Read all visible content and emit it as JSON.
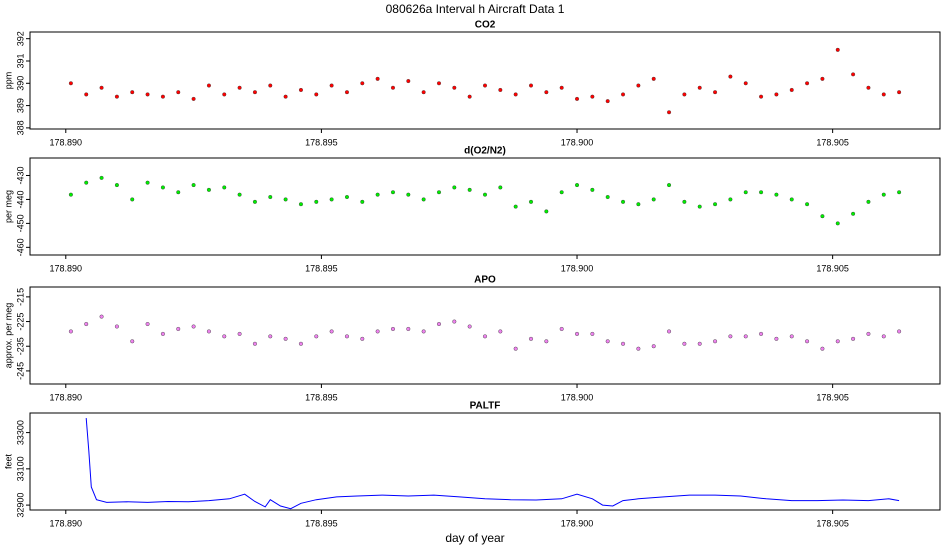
{
  "title": "080626a   Interval h Aircraft Data 1",
  "xlabel": "day of year",
  "chart_data": [
    {
      "type": "scatter",
      "title": "CO2",
      "ylabel": "ppm",
      "color": "#ff0000",
      "x": [
        178.8901,
        178.8904,
        178.8907,
        178.891,
        178.8913,
        178.8916,
        178.8919,
        178.8922,
        178.8925,
        178.8928,
        178.8931,
        178.8934,
        178.8937,
        178.894,
        178.8943,
        178.8946,
        178.8949,
        178.8952,
        178.8955,
        178.8958,
        178.8961,
        178.8964,
        178.8967,
        178.897,
        178.8973,
        178.8976,
        178.8979,
        178.8982,
        178.8985,
        178.8988,
        178.8991,
        178.8994,
        178.8997,
        178.9,
        178.9003,
        178.9006,
        178.9009,
        178.9012,
        178.9015,
        178.9018,
        178.9021,
        178.9024,
        178.9027,
        178.903,
        178.9033,
        178.9036,
        178.9039,
        178.9042,
        178.9045,
        178.9048,
        178.9051,
        178.9054,
        178.9057,
        178.906,
        178.9063
      ],
      "values": [
        390.0,
        389.5,
        389.8,
        389.4,
        389.6,
        389.5,
        389.4,
        389.6,
        389.3,
        389.9,
        389.5,
        389.8,
        389.6,
        389.9,
        389.4,
        389.7,
        389.5,
        389.9,
        389.6,
        390.0,
        390.2,
        389.8,
        390.1,
        389.6,
        390.0,
        389.8,
        389.4,
        389.9,
        389.7,
        389.5,
        389.9,
        389.6,
        389.8,
        389.3,
        389.4,
        389.2,
        389.5,
        389.9,
        390.2,
        388.7,
        389.5,
        389.8,
        389.6,
        390.3,
        390.0,
        389.4,
        389.5,
        389.7,
        390.0,
        390.2,
        391.5,
        390.4,
        389.8,
        389.5,
        389.6
      ],
      "xlim": [
        178.8893,
        178.9071
      ],
      "ylim": [
        387.95,
        392.3
      ],
      "xticks": [
        {
          "value": 178.89,
          "label": "178.890"
        },
        178.895,
        {
          "value": 178.9,
          "label": "178.900"
        },
        178.905
      ],
      "yticks": [
        388,
        389,
        390,
        391,
        392
      ]
    },
    {
      "type": "scatter",
      "title": "d(O2/N2)",
      "ylabel": "per meg",
      "color": "#00ee00",
      "x": [
        178.8901,
        178.8904,
        178.8907,
        178.891,
        178.8913,
        178.8916,
        178.8919,
        178.8922,
        178.8925,
        178.8928,
        178.8931,
        178.8934,
        178.8937,
        178.894,
        178.8943,
        178.8946,
        178.8949,
        178.8952,
        178.8955,
        178.8958,
        178.8961,
        178.8964,
        178.8967,
        178.897,
        178.8973,
        178.8976,
        178.8979,
        178.8982,
        178.8985,
        178.8988,
        178.8991,
        178.8994,
        178.8997,
        178.9,
        178.9003,
        178.9006,
        178.9009,
        178.9012,
        178.9015,
        178.9018,
        178.9021,
        178.9024,
        178.9027,
        178.903,
        178.9033,
        178.9036,
        178.9039,
        178.9042,
        178.9045,
        178.9048,
        178.9051,
        178.9054,
        178.9057,
        178.906,
        178.9063
      ],
      "values": [
        -438,
        -433,
        -431,
        -434,
        -440,
        -433,
        -435,
        -437,
        -434,
        -436,
        -435,
        -438,
        -441,
        -439,
        -440,
        -442,
        -441,
        -440,
        -439,
        -441,
        -438,
        -437,
        -438,
        -440,
        -437,
        -435,
        -436,
        -438,
        -435,
        -443,
        -441,
        -445,
        -437,
        -434,
        -436,
        -439,
        -441,
        -442,
        -440,
        -434,
        -441,
        -443,
        -442,
        -440,
        -437,
        -437,
        -438,
        -440,
        -442,
        -447,
        -450,
        -446,
        -441,
        -438,
        -437
      ],
      "xlim": [
        178.8893,
        178.9071
      ],
      "ylim": [
        -463.2,
        -422.7
      ],
      "xticks": [
        {
          "value": 178.89,
          "label": "178.890"
        },
        178.895,
        {
          "value": 178.9,
          "label": "178.900"
        },
        178.905
      ],
      "yticks": [
        -460,
        -450,
        -440,
        -430
      ]
    },
    {
      "type": "scatter",
      "title": "APO",
      "ylabel": "approx. per meg",
      "color": "#ee82ee",
      "x": [
        178.8901,
        178.8904,
        178.8907,
        178.891,
        178.8913,
        178.8916,
        178.8919,
        178.8922,
        178.8925,
        178.8928,
        178.8931,
        178.8934,
        178.8937,
        178.894,
        178.8943,
        178.8946,
        178.8949,
        178.8952,
        178.8955,
        178.8958,
        178.8961,
        178.8964,
        178.8967,
        178.897,
        178.8973,
        178.8976,
        178.8979,
        178.8982,
        178.8985,
        178.8988,
        178.8991,
        178.8994,
        178.8997,
        178.9,
        178.9003,
        178.9006,
        178.9009,
        178.9012,
        178.9015,
        178.9018,
        178.9021,
        178.9024,
        178.9027,
        178.903,
        178.9033,
        178.9036,
        178.9039,
        178.9042,
        178.9045,
        178.9048,
        178.9051,
        178.9054,
        178.9057,
        178.906,
        178.9063
      ],
      "values": [
        -229,
        -226,
        -223,
        -227,
        -233,
        -226,
        -230,
        -228,
        -227,
        -229,
        -231,
        -230,
        -234,
        -231,
        -232,
        -234,
        -231,
        -229,
        -231,
        -232,
        -229,
        -228,
        -228,
        -229,
        -226,
        -225,
        -227,
        -231,
        -229,
        -236,
        -232,
        -233,
        -228,
        -230,
        -230,
        -233,
        -234,
        -236,
        -235,
        -229,
        -234,
        -234,
        -233,
        -231,
        -231,
        -230,
        -232,
        -231,
        -233,
        -236,
        -233,
        -232,
        -230,
        -231,
        -229
      ],
      "xlim": [
        178.8893,
        178.9071
      ],
      "ylim": [
        -250.3,
        -211
      ],
      "xticks": [
        {
          "value": 178.89,
          "label": "178.890"
        },
        178.895,
        {
          "value": 178.9,
          "label": "178.900"
        },
        178.905
      ],
      "yticks": [
        -245,
        -235,
        -225,
        -215
      ]
    },
    {
      "type": "line",
      "title": "PALTF",
      "ylabel": "feet",
      "color": "#0000ff",
      "x": [
        178.8904,
        178.89045,
        178.8905,
        178.8906,
        178.8908,
        178.8912,
        178.8916,
        178.892,
        178.8924,
        178.8928,
        178.8932,
        178.8935,
        178.8937,
        178.8939,
        178.894,
        178.8942,
        178.8944,
        178.8946,
        178.8949,
        178.8953,
        178.8957,
        178.8962,
        178.8967,
        178.8972,
        178.8977,
        178.8982,
        178.8987,
        178.8992,
        178.8997,
        178.9,
        178.9003,
        178.9005,
        178.9007,
        178.9009,
        178.9012,
        178.9017,
        178.9022,
        178.9027,
        178.9032,
        178.9037,
        178.9042,
        178.9047,
        178.9052,
        178.9057,
        178.9061,
        178.9063
      ],
      "values": [
        33380,
        33200,
        33000,
        32930,
        32915,
        32918,
        32915,
        32920,
        32918,
        32925,
        32935,
        32960,
        32920,
        32890,
        32930,
        32895,
        32880,
        32910,
        32930,
        32945,
        32950,
        32955,
        32950,
        32955,
        32945,
        32935,
        32930,
        32928,
        32935,
        32960,
        32935,
        32900,
        32895,
        32925,
        32935,
        32945,
        32955,
        32955,
        32950,
        32935,
        32925,
        32925,
        32928,
        32925,
        32935,
        32925
      ],
      "xlim": [
        178.8893,
        178.9071
      ],
      "ylim": [
        32873,
        33408
      ],
      "xticks": [
        {
          "value": 178.89,
          "label": "178.890"
        },
        178.895,
        {
          "value": 178.9,
          "label": "178.900"
        },
        178.905
      ],
      "yticks": [
        32900,
        33100,
        33300
      ]
    }
  ]
}
